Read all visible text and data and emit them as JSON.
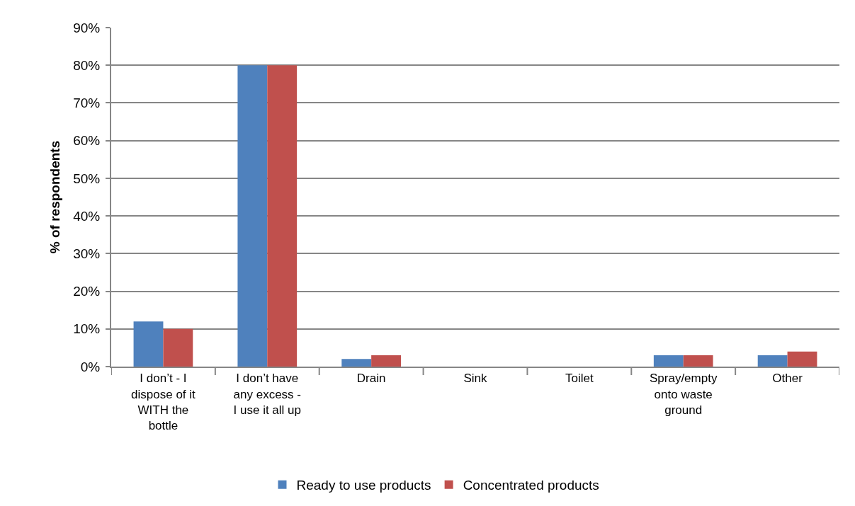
{
  "chart_data": {
    "type": "bar",
    "ylabel": "% of respondents",
    "categories": [
      "I don’t - I dispose of it WITH the bottle",
      "I don’t have any excess - I use it all up",
      "Drain",
      "Sink",
      "Toilet",
      "Spray/empty onto waste ground",
      "Other"
    ],
    "series": [
      {
        "name": "Ready to use products",
        "color": "#4f81bd",
        "values": [
          12,
          80,
          2,
          0,
          0,
          3,
          3
        ]
      },
      {
        "name": "Concentrated products",
        "color": "#c0504d",
        "values": [
          10,
          80,
          3,
          0,
          0,
          3,
          4
        ]
      }
    ],
    "ylim": [
      0,
      90
    ],
    "yticks": [
      {
        "value": 0,
        "label": "0%"
      },
      {
        "value": 10,
        "label": "10%"
      },
      {
        "value": 20,
        "label": "20%"
      },
      {
        "value": 30,
        "label": "30%"
      },
      {
        "value": 40,
        "label": "40%"
      },
      {
        "value": 50,
        "label": "50%"
      },
      {
        "value": 60,
        "label": "60%"
      },
      {
        "value": 70,
        "label": "70%"
      },
      {
        "value": 80,
        "label": "80%"
      },
      {
        "value": 90,
        "label": "90%"
      }
    ],
    "grid": "y",
    "legend": "bottom"
  }
}
